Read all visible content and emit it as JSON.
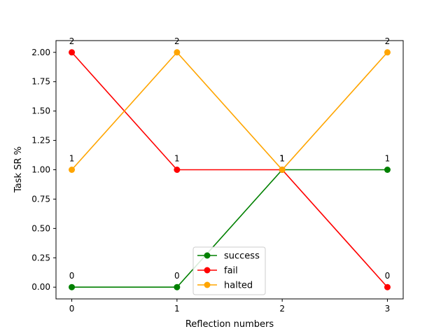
{
  "chart_data": {
    "type": "line",
    "xlabel": "Reflection numbers",
    "ylabel": "Task SR %",
    "x": [
      0,
      1,
      2,
      3
    ],
    "xlim": [
      -0.15,
      3.15
    ],
    "ylim": [
      -0.1,
      2.1
    ],
    "xticks": [
      0,
      1,
      2,
      3
    ],
    "yticks": [
      0.0,
      0.25,
      0.5,
      0.75,
      1.0,
      1.25,
      1.5,
      1.75,
      2.0
    ],
    "ytick_labels": [
      "0.00",
      "0.25",
      "0.50",
      "0.75",
      "1.00",
      "1.25",
      "1.50",
      "1.75",
      "2.00"
    ],
    "grid": false,
    "legend_position": "bottom-center",
    "series": [
      {
        "name": "success",
        "color": "#008000",
        "values": [
          0,
          0,
          1,
          1
        ],
        "labels": [
          "0",
          "0",
          "1",
          "1"
        ]
      },
      {
        "name": "fail",
        "color": "#ff0000",
        "values": [
          2,
          1,
          1,
          0
        ],
        "labels": [
          "2",
          "1",
          "1",
          "0"
        ]
      },
      {
        "name": "halted",
        "color": "#ffa500",
        "values": [
          1,
          2,
          1,
          2
        ],
        "labels": [
          "1",
          "2",
          "1",
          "2"
        ]
      }
    ]
  }
}
